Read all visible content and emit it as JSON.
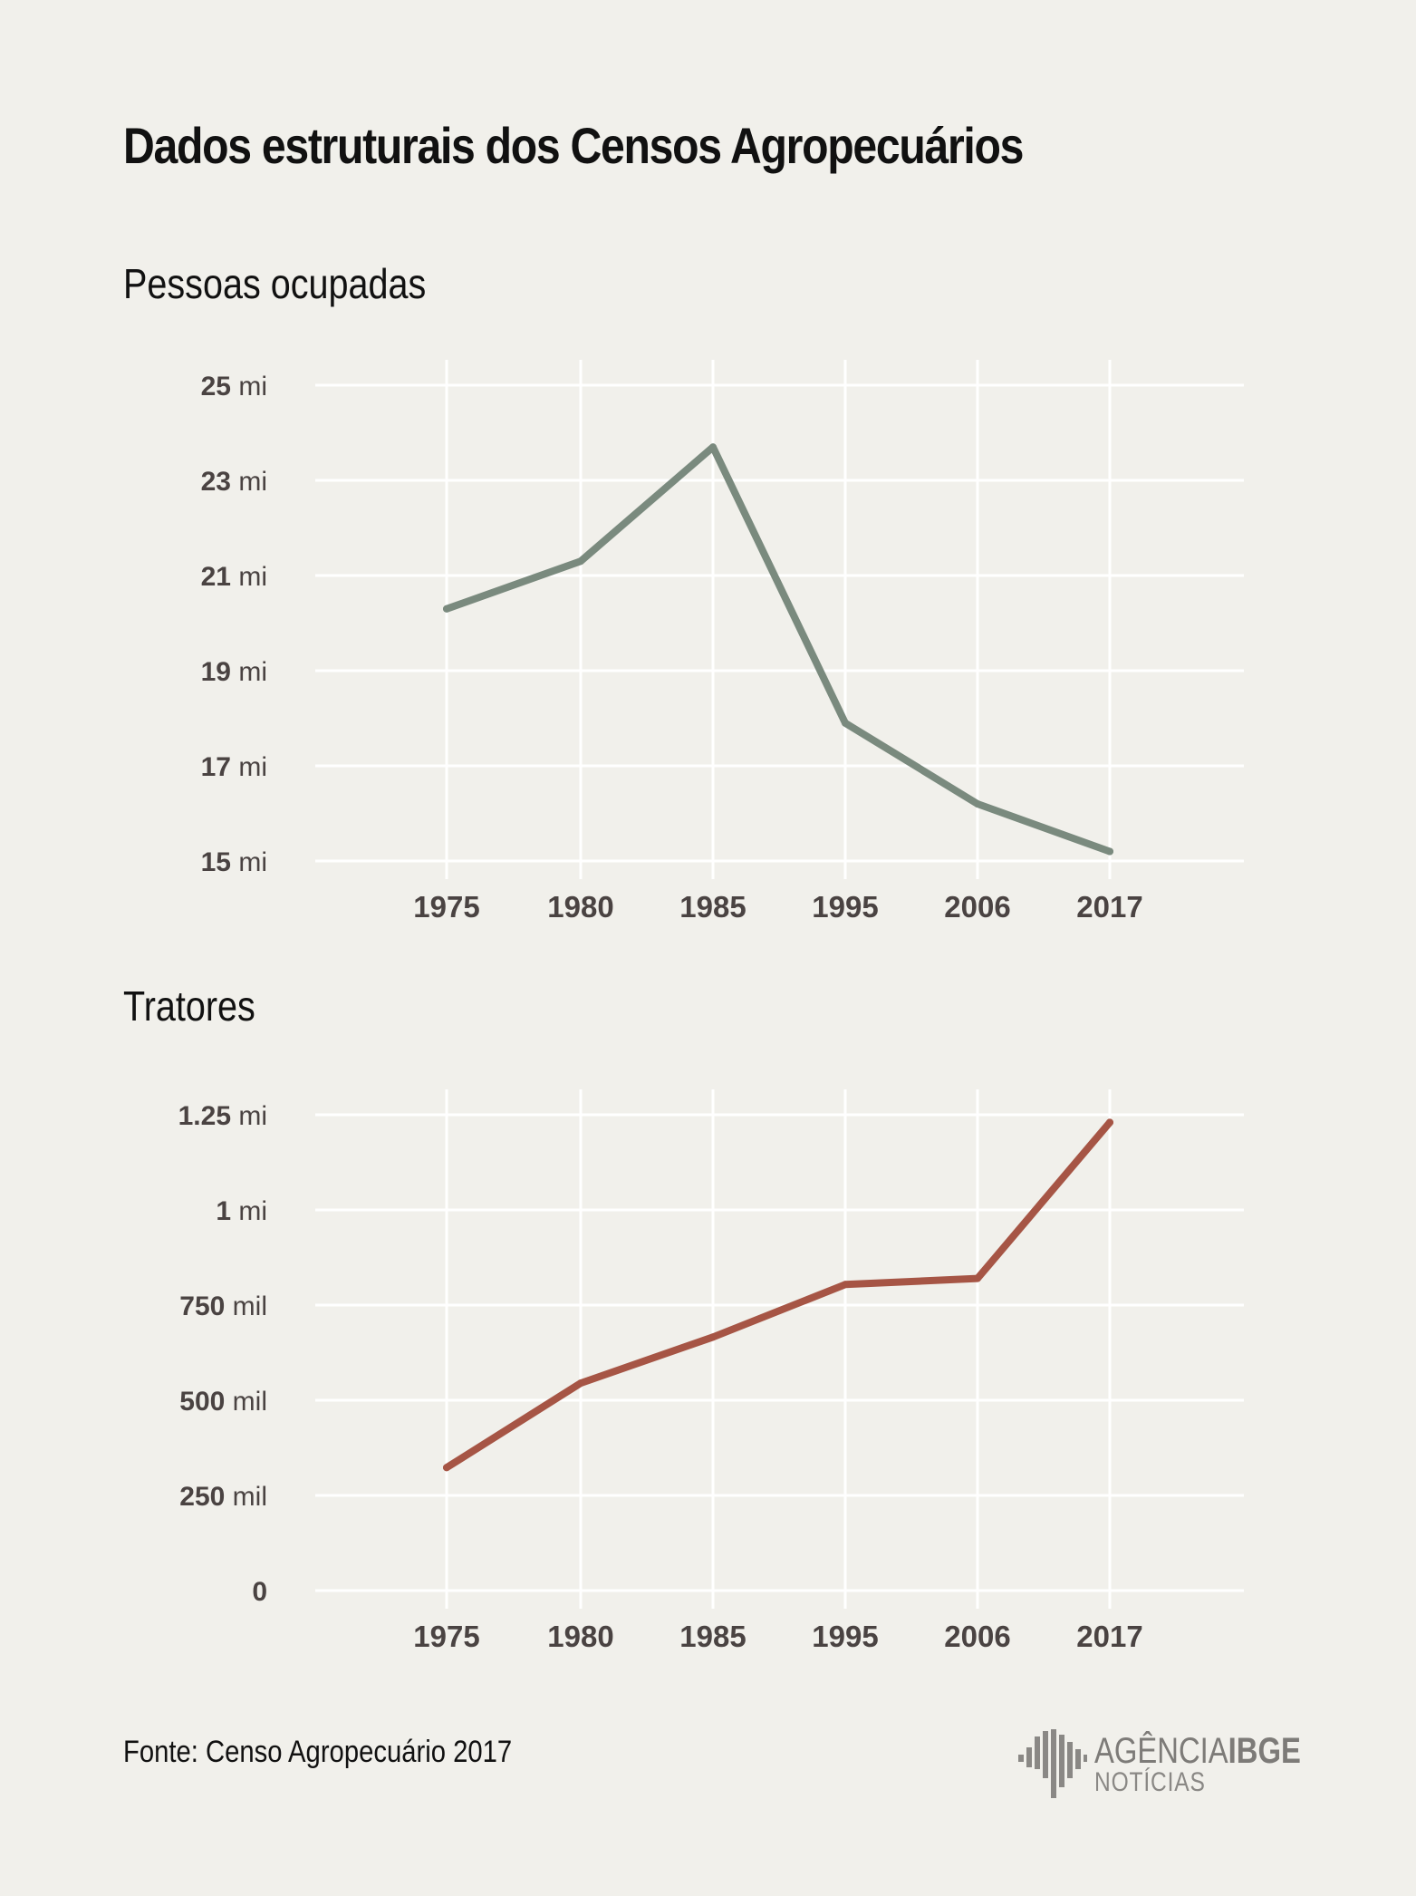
{
  "title": "Dados estruturais dos Censos Agropecuários",
  "source": "Fonte: Censo Agropecuário 2017",
  "logo": {
    "brand_light": "AGÊNCIA",
    "brand_bold": "IBGE",
    "sub": "NOTÍCIAS",
    "icon": "ibge-bars-icon"
  },
  "chart_data": [
    {
      "type": "line",
      "title": "Pessoas ocupadas",
      "categories": [
        "1975",
        "1980",
        "1985",
        "1995",
        "2006",
        "2017"
      ],
      "values": [
        20.3,
        21.3,
        23.7,
        17.9,
        16.2,
        15.2
      ],
      "ylim": [
        15,
        25
      ],
      "yticks": [
        {
          "value": 25,
          "num": "25",
          "unit": "mi"
        },
        {
          "value": 23,
          "num": "23",
          "unit": "mi"
        },
        {
          "value": 21,
          "num": "21",
          "unit": "mi"
        },
        {
          "value": 19,
          "num": "19",
          "unit": "mi"
        },
        {
          "value": 17,
          "num": "17",
          "unit": "mi"
        },
        {
          "value": 15,
          "num": "15",
          "unit": "mi"
        }
      ],
      "color": "#7a8a7e",
      "grid": true
    },
    {
      "type": "line",
      "title": "Tratores",
      "categories": [
        "1975",
        "1980",
        "1985",
        "1995",
        "2006",
        "2017"
      ],
      "values": [
        323000,
        545000,
        666000,
        804000,
        820000,
        1230000
      ],
      "ylim": [
        0,
        1250000
      ],
      "yticks": [
        {
          "value": 1250000,
          "num": "1.25",
          "unit": "mi"
        },
        {
          "value": 1000000,
          "num": "1",
          "unit": "mi"
        },
        {
          "value": 750000,
          "num": "750",
          "unit": "mil"
        },
        {
          "value": 500000,
          "num": "500",
          "unit": "mil"
        },
        {
          "value": 250000,
          "num": "250",
          "unit": "mil"
        },
        {
          "value": 0,
          "num": "0",
          "unit": ""
        }
      ],
      "color": "#a65545",
      "grid": true
    }
  ]
}
